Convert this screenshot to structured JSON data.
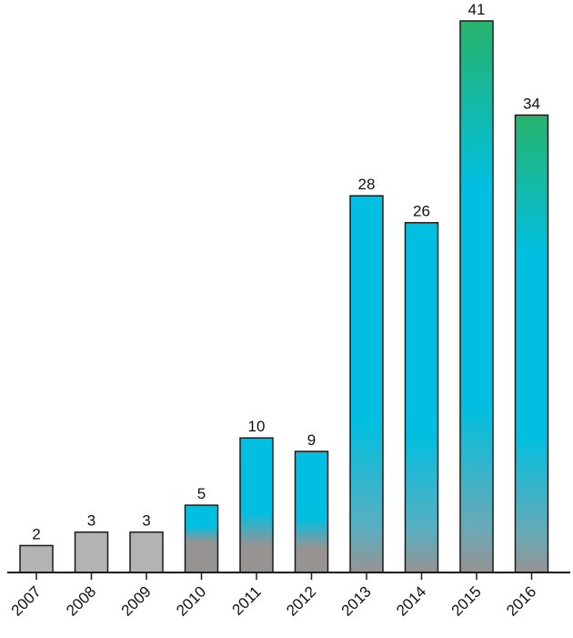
{
  "chart_data": {
    "type": "bar",
    "title": "",
    "xlabel": "",
    "ylabel": "",
    "categories": [
      "2007",
      "2008",
      "2009",
      "2010",
      "2011",
      "2012",
      "2013",
      "2014",
      "2015",
      "2016"
    ],
    "values": [
      2,
      3,
      3,
      5,
      10,
      9,
      28,
      26,
      41,
      34
    ],
    "ylim": [
      0,
      41
    ],
    "grid": false,
    "data_labels": true,
    "colors": {
      "gray": "#b3b3b3",
      "gray_base": "#979393",
      "cyan": "#00bfe0",
      "green": "#27b36c"
    }
  }
}
